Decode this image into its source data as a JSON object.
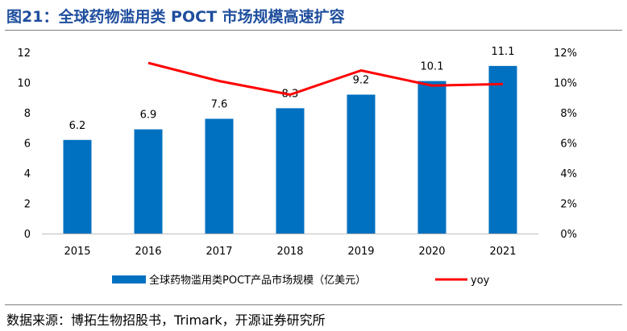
{
  "title": "图21：全球药物滥用类 POCT 市场规模高速扩容",
  "source": "数据来源：博拓生物招股书，Trimark，开源证券研究所",
  "chart_data": {
    "type": "bar+line",
    "categories": [
      "2015",
      "2016",
      "2017",
      "2018",
      "2019",
      "2020",
      "2021"
    ],
    "series": [
      {
        "name": "全球药物滥用类POCT产品市场规模（亿美元）",
        "type": "bar",
        "axis": "left",
        "color": "#0070c0",
        "values": [
          6.2,
          6.9,
          7.6,
          8.3,
          9.2,
          10.1,
          11.1
        ],
        "labels": [
          "6.2",
          "6.9",
          "7.6",
          "8.3",
          "9.2",
          "10.1",
          "11.1"
        ]
      },
      {
        "name": "yoy",
        "type": "line",
        "axis": "right",
        "color": "#ff0000",
        "values": [
          null,
          11.3,
          10.1,
          9.2,
          10.8,
          9.8,
          9.9
        ]
      }
    ],
    "y_left": {
      "min": 0,
      "max": 12,
      "ticks": [
        "0",
        "2",
        "4",
        "6",
        "8",
        "10",
        "12"
      ]
    },
    "y_right": {
      "min": 0,
      "max": 12,
      "ticks": [
        "0%",
        "2%",
        "4%",
        "6%",
        "8%",
        "10%",
        "12%"
      ]
    },
    "legend_position": "bottom",
    "grid": false
  }
}
